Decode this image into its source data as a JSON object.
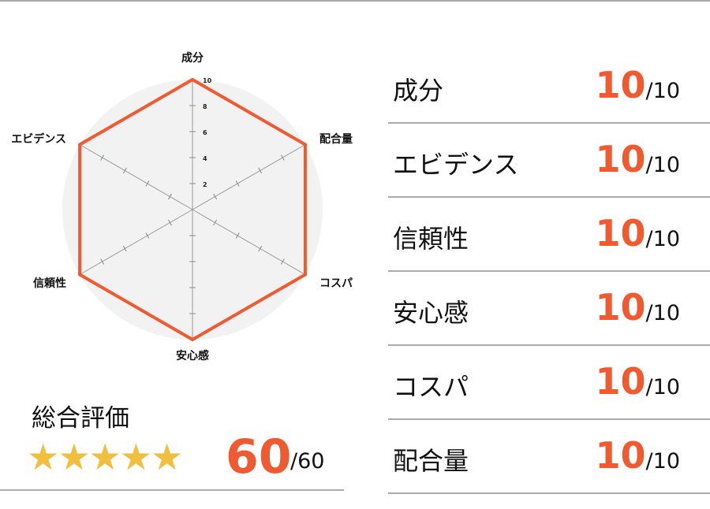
{
  "chart_data": {
    "type": "radar",
    "categories": [
      "成分",
      "配合量",
      "コスパ",
      "安心感",
      "信頼性",
      "エビデンス"
    ],
    "values": [
      10,
      10,
      10,
      10,
      10,
      10
    ],
    "rlim": [
      0,
      10
    ],
    "ticks": [
      "2",
      "4",
      "6",
      "8",
      "10"
    ],
    "color": "#f05a30",
    "background": "#f2f2f2"
  },
  "total": {
    "label": "総合評価",
    "stars": "★★★★★",
    "rating_fraction": 1.0,
    "score": "60",
    "max": "/60",
    "star_color": "#f2be3d"
  },
  "rows": [
    {
      "label": "成分",
      "value": "10",
      "max": "/10"
    },
    {
      "label": "エビデンス",
      "value": "10",
      "max": "/10"
    },
    {
      "label": "信頼性",
      "value": "10",
      "max": "/10"
    },
    {
      "label": "安心感",
      "value": "10",
      "max": "/10"
    },
    {
      "label": "コスパ",
      "value": "10",
      "max": "/10"
    },
    {
      "label": "配合量",
      "value": "10",
      "max": "/10"
    }
  ]
}
